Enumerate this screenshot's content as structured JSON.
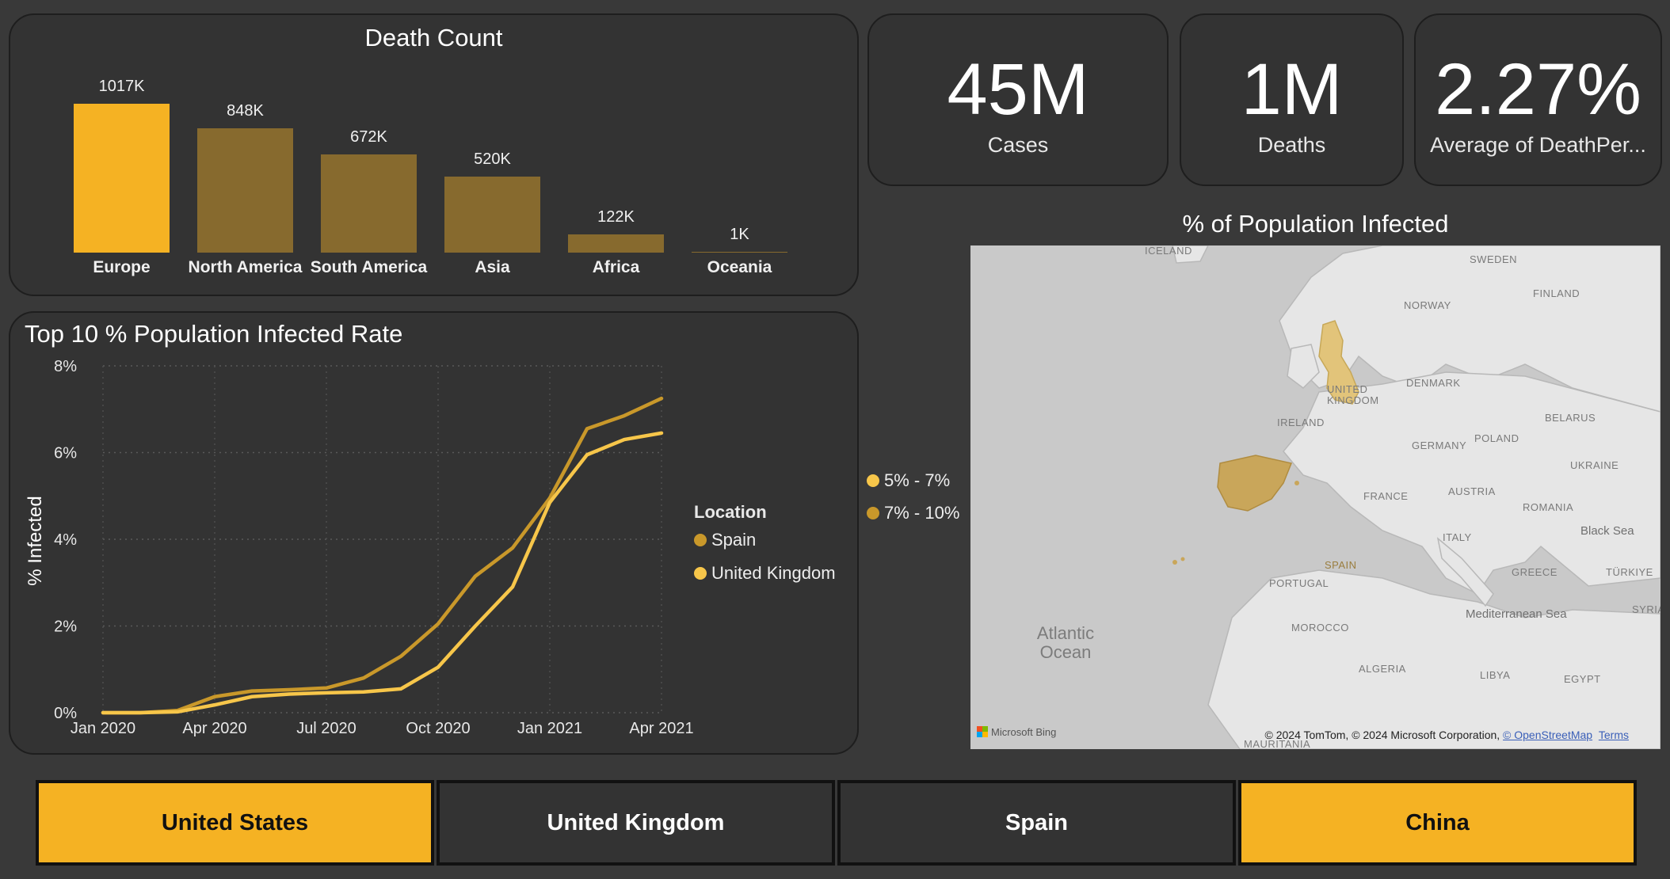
{
  "bar_chart": {
    "title": "Death Count",
    "colors": {
      "highlight": "#f5b223",
      "default": "#876a2e"
    }
  },
  "kpis": [
    {
      "value": "45M",
      "label": "Cases"
    },
    {
      "value": "1M",
      "label": "Deaths"
    },
    {
      "value": "2.27%",
      "label": "Average of DeathPer..."
    }
  ],
  "line_chart": {
    "title": "Top 10 % Population Infected Rate",
    "legend_title": "Location"
  },
  "map": {
    "title": "% of Population Infected",
    "legend": [
      {
        "label": "5% - 7%",
        "color": "#f7c64a"
      },
      {
        "label": "7% - 10%",
        "color": "#c9982a"
      }
    ],
    "labels": [
      "ICELAND",
      "SWEDEN",
      "FINLAND",
      "NORWAY",
      "DENMARK",
      "UNITED KINGDOM",
      "IRELAND",
      "BELARUS",
      "POLAND",
      "GERMANY",
      "UKRAINE",
      "FRANCE",
      "AUSTRIA",
      "ROMANIA",
      "ITALY",
      "SPAIN",
      "PORTUGAL",
      "GREECE",
      "TÜRKIYE",
      "MOROCCO",
      "ALGERIA",
      "LIBYA",
      "EGYPT",
      "SYRIA",
      "MAURITANIA"
    ],
    "ocean_label": "Atlantic Ocean",
    "sea_labels": [
      "Black Sea",
      "Mediterranean Sea"
    ],
    "provider": "Microsoft Bing",
    "attribution": "© 2024 TomTom, © 2024 Microsoft Corporation,",
    "attribution_link": "© OpenStreetMap",
    "terms_link": "Terms"
  },
  "slicers": [
    {
      "label": "United States",
      "selected": true
    },
    {
      "label": "United Kingdom",
      "selected": false
    },
    {
      "label": "Spain",
      "selected": false
    },
    {
      "label": "China",
      "selected": true
    }
  ],
  "chart_data": [
    {
      "type": "bar",
      "title": "Death Count",
      "categories": [
        "Europe",
        "North America",
        "South America",
        "Asia",
        "Africa",
        "Oceania"
      ],
      "values": [
        1017000,
        848000,
        672000,
        520000,
        122000,
        1000
      ],
      "data_labels": [
        "1017K",
        "848K",
        "672K",
        "520K",
        "122K",
        "1K"
      ],
      "highlighted": "Europe",
      "ylim": [
        0,
        1017000
      ]
    },
    {
      "type": "line",
      "title": "Top 10 % Population Infected Rate",
      "ylabel": "% Infected",
      "xlabel": "",
      "x_ticks": [
        "Jan 2020",
        "Apr 2020",
        "Jul 2020",
        "Oct 2020",
        "Jan 2021",
        "Apr 2021"
      ],
      "y_ticks": [
        "0%",
        "2%",
        "4%",
        "6%",
        "8%"
      ],
      "ylim": [
        0,
        8
      ],
      "grid": true,
      "legend": "right",
      "x": [
        "2020-01-01",
        "2020-02-01",
        "2020-03-01",
        "2020-04-01",
        "2020-05-01",
        "2020-06-01",
        "2020-07-01",
        "2020-08-01",
        "2020-09-01",
        "2020-10-01",
        "2020-11-01",
        "2020-12-01",
        "2021-01-01",
        "2021-02-01",
        "2021-03-01",
        "2021-04-01"
      ],
      "series": [
        {
          "name": "Spain",
          "color": "#c9982a",
          "values": [
            0.0,
            0.0,
            0.05,
            0.37,
            0.5,
            0.53,
            0.57,
            0.8,
            1.3,
            2.05,
            3.15,
            3.8,
            4.95,
            6.55,
            6.85,
            7.25
          ]
        },
        {
          "name": "United Kingdom",
          "color": "#f7c64a",
          "values": [
            0.0,
            0.0,
            0.02,
            0.18,
            0.37,
            0.43,
            0.46,
            0.48,
            0.55,
            1.05,
            2.0,
            2.9,
            4.85,
            5.95,
            6.3,
            6.45
          ]
        }
      ]
    }
  ]
}
